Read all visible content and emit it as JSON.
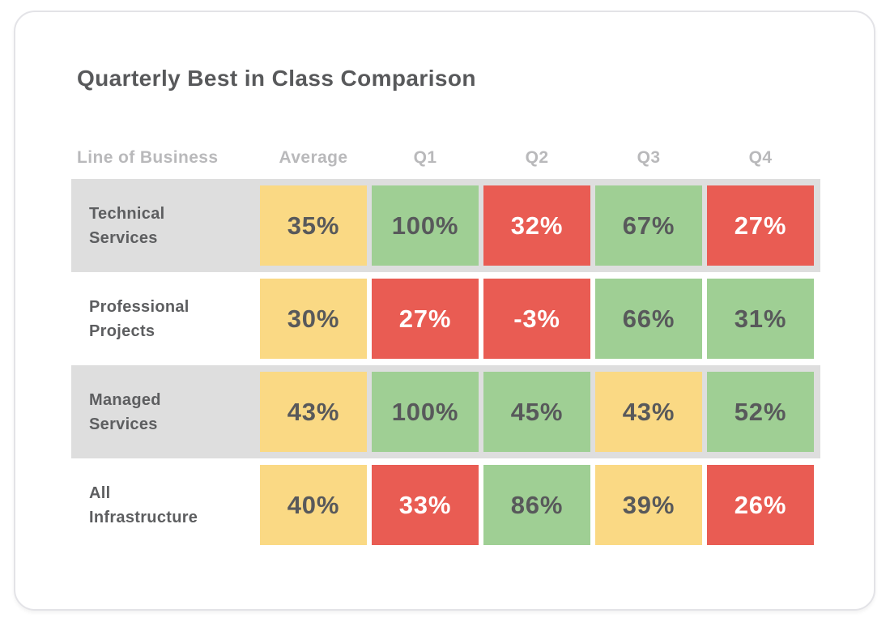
{
  "title": "Quarterly Best in Class Comparison",
  "colors": {
    "yellow": "#fad984",
    "green": "#9fcf94",
    "red": "#e95c53",
    "row_stripe": "#dedede",
    "row_plain": "#ffffff",
    "text_dark": "#58595b",
    "text_light": "#ffffff",
    "header_gray": "#b9b9bb",
    "card_border": "#e3e3e7"
  },
  "table": {
    "columns": [
      "Line of Business",
      "Average",
      "Q1",
      "Q2",
      "Q3",
      "Q4"
    ],
    "rows": [
      {
        "label": "Technical\nServices",
        "cells": [
          {
            "value": "35%",
            "bg": "#fad984",
            "fg": "#58595b"
          },
          {
            "value": "100%",
            "bg": "#9fcf94",
            "fg": "#58595b"
          },
          {
            "value": "32%",
            "bg": "#e95c53",
            "fg": "#ffffff"
          },
          {
            "value": "67%",
            "bg": "#9fcf94",
            "fg": "#58595b"
          },
          {
            "value": "27%",
            "bg": "#e95c53",
            "fg": "#ffffff"
          }
        ]
      },
      {
        "label": "Professional\nProjects",
        "cells": [
          {
            "value": "30%",
            "bg": "#fad984",
            "fg": "#58595b"
          },
          {
            "value": "27%",
            "bg": "#e95c53",
            "fg": "#ffffff"
          },
          {
            "value": "-3%",
            "bg": "#e95c53",
            "fg": "#ffffff"
          },
          {
            "value": "66%",
            "bg": "#9fcf94",
            "fg": "#58595b"
          },
          {
            "value": "31%",
            "bg": "#9fcf94",
            "fg": "#58595b"
          }
        ]
      },
      {
        "label": "Managed\nServices",
        "cells": [
          {
            "value": "43%",
            "bg": "#fad984",
            "fg": "#58595b"
          },
          {
            "value": "100%",
            "bg": "#9fcf94",
            "fg": "#58595b"
          },
          {
            "value": "45%",
            "bg": "#9fcf94",
            "fg": "#58595b"
          },
          {
            "value": "43%",
            "bg": "#fad984",
            "fg": "#58595b"
          },
          {
            "value": "52%",
            "bg": "#9fcf94",
            "fg": "#58595b"
          }
        ]
      },
      {
        "label": "All\nInfrastructure",
        "cells": [
          {
            "value": "40%",
            "bg": "#fad984",
            "fg": "#58595b"
          },
          {
            "value": "33%",
            "bg": "#e95c53",
            "fg": "#ffffff"
          },
          {
            "value": "86%",
            "bg": "#9fcf94",
            "fg": "#58595b"
          },
          {
            "value": "39%",
            "bg": "#fad984",
            "fg": "#58595b"
          },
          {
            "value": "26%",
            "bg": "#e95c53",
            "fg": "#ffffff"
          }
        ]
      }
    ]
  },
  "chart_data": {
    "type": "heatmap",
    "title": "Quarterly Best in Class Comparison",
    "row_label_header": "Line of Business",
    "columns": [
      "Average",
      "Q1",
      "Q2",
      "Q3",
      "Q4"
    ],
    "rows": [
      "Technical Services",
      "Professional Projects",
      "Managed Services",
      "All Infrastructure"
    ],
    "values": [
      [
        35,
        100,
        32,
        67,
        27
      ],
      [
        30,
        27,
        -3,
        66,
        31
      ],
      [
        43,
        100,
        45,
        43,
        52
      ],
      [
        40,
        33,
        86,
        39,
        26
      ]
    ],
    "cell_status_colors": [
      [
        "yellow",
        "green",
        "red",
        "green",
        "red"
      ],
      [
        "yellow",
        "red",
        "red",
        "green",
        "green"
      ],
      [
        "yellow",
        "green",
        "green",
        "yellow",
        "green"
      ],
      [
        "yellow",
        "red",
        "green",
        "yellow",
        "red"
      ]
    ],
    "legend": false,
    "grid": false
  }
}
